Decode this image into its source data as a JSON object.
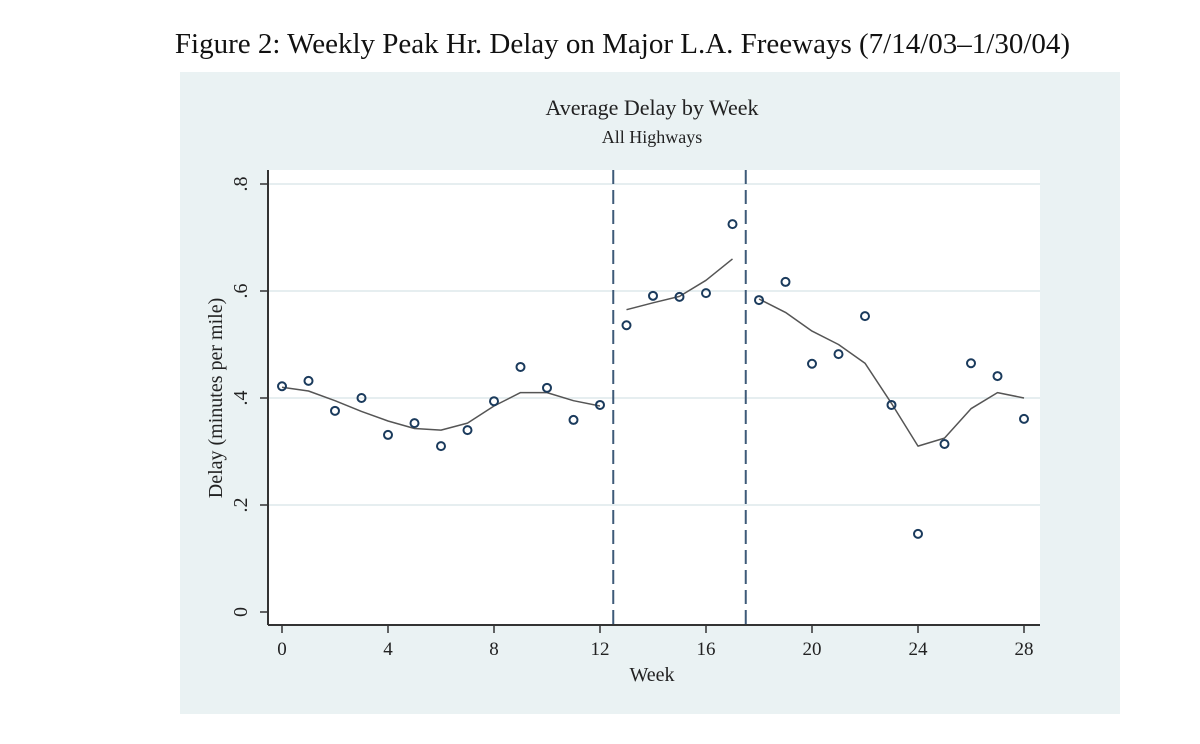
{
  "figure_title": "Figure 2: Weekly Peak Hr. Delay on Major L.A. Freeways (7/14/03–1/30/04)",
  "chart_data": {
    "type": "scatter",
    "title": "Average Delay by Week",
    "subtitle": "All Highways",
    "xlabel": "Week",
    "ylabel": "Delay (minutes per mile)",
    "xlim": [
      0,
      28
    ],
    "ylim": [
      0,
      0.8
    ],
    "xticks": [
      0,
      4,
      8,
      12,
      16,
      20,
      24,
      28
    ],
    "xtick_labels": [
      "0",
      "4",
      "8",
      "12",
      "16",
      "20",
      "24",
      "28"
    ],
    "yticks": [
      0,
      0.2,
      0.4,
      0.6,
      0.8
    ],
    "ytick_labels": [
      "0",
      ".2",
      ".4",
      ".6",
      ".8"
    ],
    "grid": true,
    "vlines": [
      12.5,
      17.5
    ],
    "points": {
      "x": [
        0,
        1,
        2,
        3,
        4,
        5,
        6,
        7,
        8,
        9,
        10,
        11,
        12,
        13,
        14,
        15,
        16,
        17,
        18,
        19,
        20,
        21,
        22,
        23,
        24,
        25,
        26,
        27,
        28
      ],
      "y": [
        0.422,
        0.432,
        0.376,
        0.4,
        0.331,
        0.353,
        0.31,
        0.34,
        0.394,
        0.458,
        0.419,
        0.359,
        0.387,
        0.536,
        0.591,
        0.589,
        0.596,
        0.725,
        0.583,
        0.617,
        0.464,
        0.482,
        0.553,
        0.387,
        0.146,
        0.314,
        0.465,
        0.441,
        0.361
      ]
    },
    "smooth_segments": [
      {
        "x": [
          0,
          1,
          2,
          3,
          4,
          5,
          6,
          7,
          8,
          9,
          10,
          11,
          12
        ],
        "y": [
          0.42,
          0.413,
          0.395,
          0.375,
          0.357,
          0.343,
          0.34,
          0.353,
          0.385,
          0.41,
          0.41,
          0.395,
          0.385
        ]
      },
      {
        "x": [
          13,
          14,
          15,
          16,
          17
        ],
        "y": [
          0.565,
          0.578,
          0.59,
          0.62,
          0.66
        ]
      },
      {
        "x": [
          18,
          19,
          20,
          21,
          22,
          23,
          24,
          25,
          26,
          27,
          28
        ],
        "y": [
          0.585,
          0.56,
          0.525,
          0.5,
          0.465,
          0.39,
          0.31,
          0.325,
          0.38,
          0.41,
          0.4
        ]
      }
    ],
    "colors": {
      "marker": "#1a3a5c",
      "line": "#555555",
      "vline": "#3e5a78",
      "background": "#eaf2f3",
      "grid": "#e6eef0"
    }
  }
}
